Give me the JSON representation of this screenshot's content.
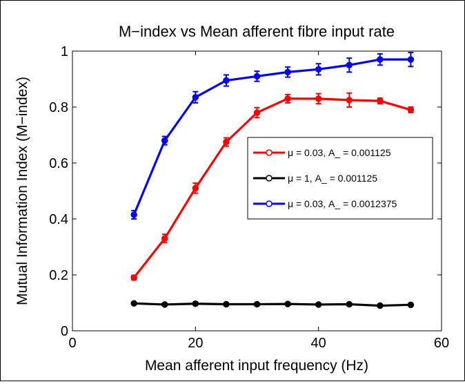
{
  "chart_data": {
    "type": "line",
    "title": "M−index vs Mean afferent fibre input rate",
    "xlabel": "Mean afferent input frequency (Hz)",
    "ylabel": "Mutual Information Index (M−index)",
    "xlim": [
      0,
      60
    ],
    "ylim": [
      0,
      1
    ],
    "xticks": [
      0,
      20,
      40,
      60
    ],
    "yticks": [
      0,
      0.2,
      0.4,
      0.6,
      0.8,
      1
    ],
    "xtick_labels": [
      "0",
      "20",
      "40",
      "60"
    ],
    "ytick_labels": [
      "0",
      "0.2",
      "0.4",
      "0.6",
      "0.8",
      "1"
    ],
    "grid": false,
    "legend_position": "center-right",
    "x": [
      10,
      15,
      20,
      25,
      30,
      35,
      40,
      45,
      50,
      55
    ],
    "series": [
      {
        "name": "μ = 0.03, A_ = 0.001125",
        "color": "#ff0000",
        "values": [
          0.19,
          0.33,
          0.51,
          0.675,
          0.78,
          0.83,
          0.83,
          0.825,
          0.822,
          0.79
        ],
        "errors": [
          0.008,
          0.015,
          0.018,
          0.015,
          0.018,
          0.015,
          0.018,
          0.025,
          0.01,
          0.01
        ]
      },
      {
        "name": "μ = 1,      A_ = 0.001125",
        "color": "#000000",
        "values": [
          0.098,
          0.094,
          0.097,
          0.095,
          0.095,
          0.096,
          0.094,
          0.095,
          0.09,
          0.093
        ],
        "errors": [
          0.004,
          0.004,
          0.004,
          0.004,
          0.004,
          0.004,
          0.004,
          0.004,
          0.004,
          0.004
        ]
      },
      {
        "name": "μ = 0.03, A_ = 0.0012375",
        "color": "#0000ff",
        "values": [
          0.415,
          0.68,
          0.835,
          0.895,
          0.91,
          0.925,
          0.935,
          0.95,
          0.97,
          0.97
        ],
        "errors": [
          0.015,
          0.015,
          0.02,
          0.02,
          0.018,
          0.018,
          0.02,
          0.025,
          0.02,
          0.025
        ]
      }
    ]
  }
}
